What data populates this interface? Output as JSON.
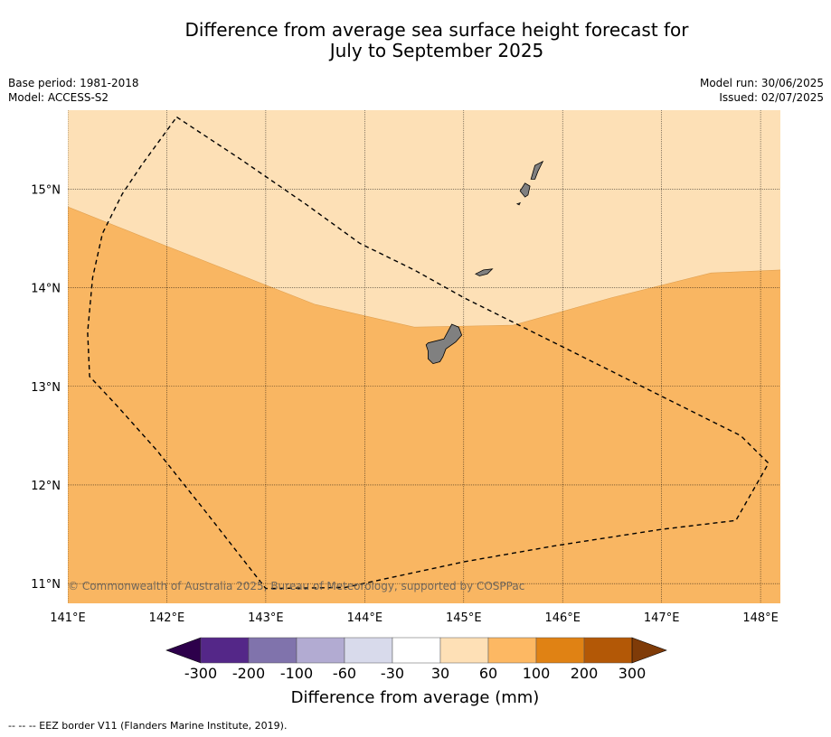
{
  "title_line1": "Difference from average sea surface height forecast for",
  "title_line2": "July to September 2025",
  "meta_left": [
    "Base period: 1981-2018",
    "Model: ACCESS-S2"
  ],
  "meta_right": [
    "Model run: 30/06/2025",
    "Issued: 02/07/2025"
  ],
  "map": {
    "lon_range": [
      141.0,
      148.2
    ],
    "lat_range": [
      10.8,
      15.8
    ],
    "lon_ticks": [
      "141°E",
      "142°E",
      "143°E",
      "144°E",
      "145°E",
      "146°E",
      "147°E",
      "148°E"
    ],
    "lat_ticks": [
      "15°N",
      "14°N",
      "13°N",
      "12°N",
      "11°N"
    ],
    "grid": true,
    "copyright": "© Commonwealth of Australia 2025, Bureau of Meteorology, supported by COSPPac",
    "colors": {
      "light_band": "#fde0b6",
      "main_band": "#f9b662",
      "land": "#808080"
    },
    "boundary_30_60mm": [
      [
        141.0,
        14.82
      ],
      [
        141.8,
        14.5
      ],
      [
        143.5,
        13.83
      ],
      [
        144.5,
        13.6
      ],
      [
        145.5,
        13.62
      ],
      [
        146.5,
        13.9
      ],
      [
        147.5,
        14.15
      ],
      [
        148.2,
        14.18
      ]
    ],
    "eez_border": [
      [
        142.1,
        15.73
      ],
      [
        142.75,
        15.3
      ],
      [
        143.4,
        14.85
      ],
      [
        143.95,
        14.45
      ],
      [
        144.5,
        14.18
      ],
      [
        145.0,
        13.9
      ],
      [
        145.5,
        13.65
      ],
      [
        146.1,
        13.35
      ],
      [
        146.8,
        13.0
      ],
      [
        147.3,
        12.75
      ],
      [
        147.8,
        12.5
      ],
      [
        148.08,
        12.22
      ],
      [
        147.75,
        11.64
      ],
      [
        147.0,
        11.55
      ],
      [
        145.9,
        11.38
      ],
      [
        145.0,
        11.22
      ],
      [
        143.8,
        10.96
      ],
      [
        143.0,
        10.95
      ],
      [
        142.4,
        11.72
      ],
      [
        141.9,
        12.35
      ],
      [
        141.5,
        12.8
      ],
      [
        141.22,
        13.1
      ],
      [
        141.2,
        13.55
      ],
      [
        141.25,
        14.1
      ],
      [
        141.35,
        14.55
      ],
      [
        141.55,
        14.95
      ],
      [
        141.75,
        15.25
      ],
      [
        142.1,
        15.73
      ]
    ],
    "islands": [
      {
        "name": "Guam",
        "coords": [
          [
            144.64,
            13.44
          ],
          [
            144.8,
            13.48
          ],
          [
            144.88,
            13.63
          ],
          [
            144.95,
            13.6
          ],
          [
            144.98,
            13.52
          ],
          [
            144.92,
            13.45
          ],
          [
            144.82,
            13.38
          ],
          [
            144.79,
            13.3
          ],
          [
            144.76,
            13.25
          ],
          [
            144.69,
            13.23
          ],
          [
            144.64,
            13.28
          ],
          [
            144.64,
            13.36
          ],
          [
            144.62,
            13.42
          ]
        ]
      },
      {
        "name": "Rota",
        "coords": [
          [
            145.12,
            14.14
          ],
          [
            145.2,
            14.18
          ],
          [
            145.29,
            14.19
          ],
          [
            145.24,
            14.14
          ],
          [
            145.16,
            14.12
          ]
        ]
      },
      {
        "name": "Tinian",
        "coords": [
          [
            145.57,
            14.98
          ],
          [
            145.62,
            15.06
          ],
          [
            145.67,
            15.03
          ],
          [
            145.65,
            14.94
          ],
          [
            145.62,
            14.92
          ]
        ]
      },
      {
        "name": "Saipan",
        "coords": [
          [
            145.68,
            15.1
          ],
          [
            145.72,
            15.24
          ],
          [
            145.8,
            15.28
          ],
          [
            145.75,
            15.18
          ],
          [
            145.72,
            15.1
          ]
        ]
      },
      {
        "name": "Aguijan",
        "coords": [
          [
            145.54,
            14.85
          ],
          [
            145.57,
            14.86
          ],
          [
            145.56,
            14.84
          ]
        ]
      }
    ]
  },
  "colorbar": {
    "ticks": [
      "-300",
      "-200",
      "-100",
      "-60",
      "-30",
      "30",
      "60",
      "100",
      "200",
      "300"
    ],
    "colors": [
      "#2d004b",
      "#542788",
      "#8073ac",
      "#b2abd2",
      "#d8daeb",
      "#ffffff",
      "#fee0b6",
      "#fdb863",
      "#e08214",
      "#b35806",
      "#7f3b08"
    ],
    "label": "Difference from average (mm)"
  },
  "footnote": "--  --  -- EEZ border V11 (Flanders Marine Institute, 2019)."
}
